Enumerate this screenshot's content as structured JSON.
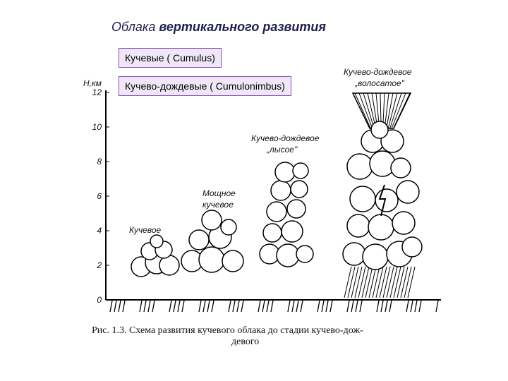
{
  "header": {
    "title_plain": "Облака",
    "title_bold": "вертикального развития"
  },
  "tags": [
    "Кучевые ( Cumulus)",
    "Кучево-дождевые ( Cumulonimbus)"
  ],
  "axis": {
    "label": "Н,км",
    "ticks": [
      0,
      2,
      4,
      6,
      8,
      10,
      12
    ]
  },
  "clouds": [
    {
      "label": [
        "Кучевое"
      ]
    },
    {
      "label": [
        "Мощное",
        "кучевое"
      ]
    },
    {
      "label": [
        "Кучево-дождевое",
        "„лысое\""
      ]
    },
    {
      "label": [
        "Кучево-дождевое",
        "„волосатое\""
      ]
    }
  ],
  "caption": [
    "Рис. 1.3. Схема развития кучевого облака до стадии кучево-дож-",
    "девого"
  ]
}
